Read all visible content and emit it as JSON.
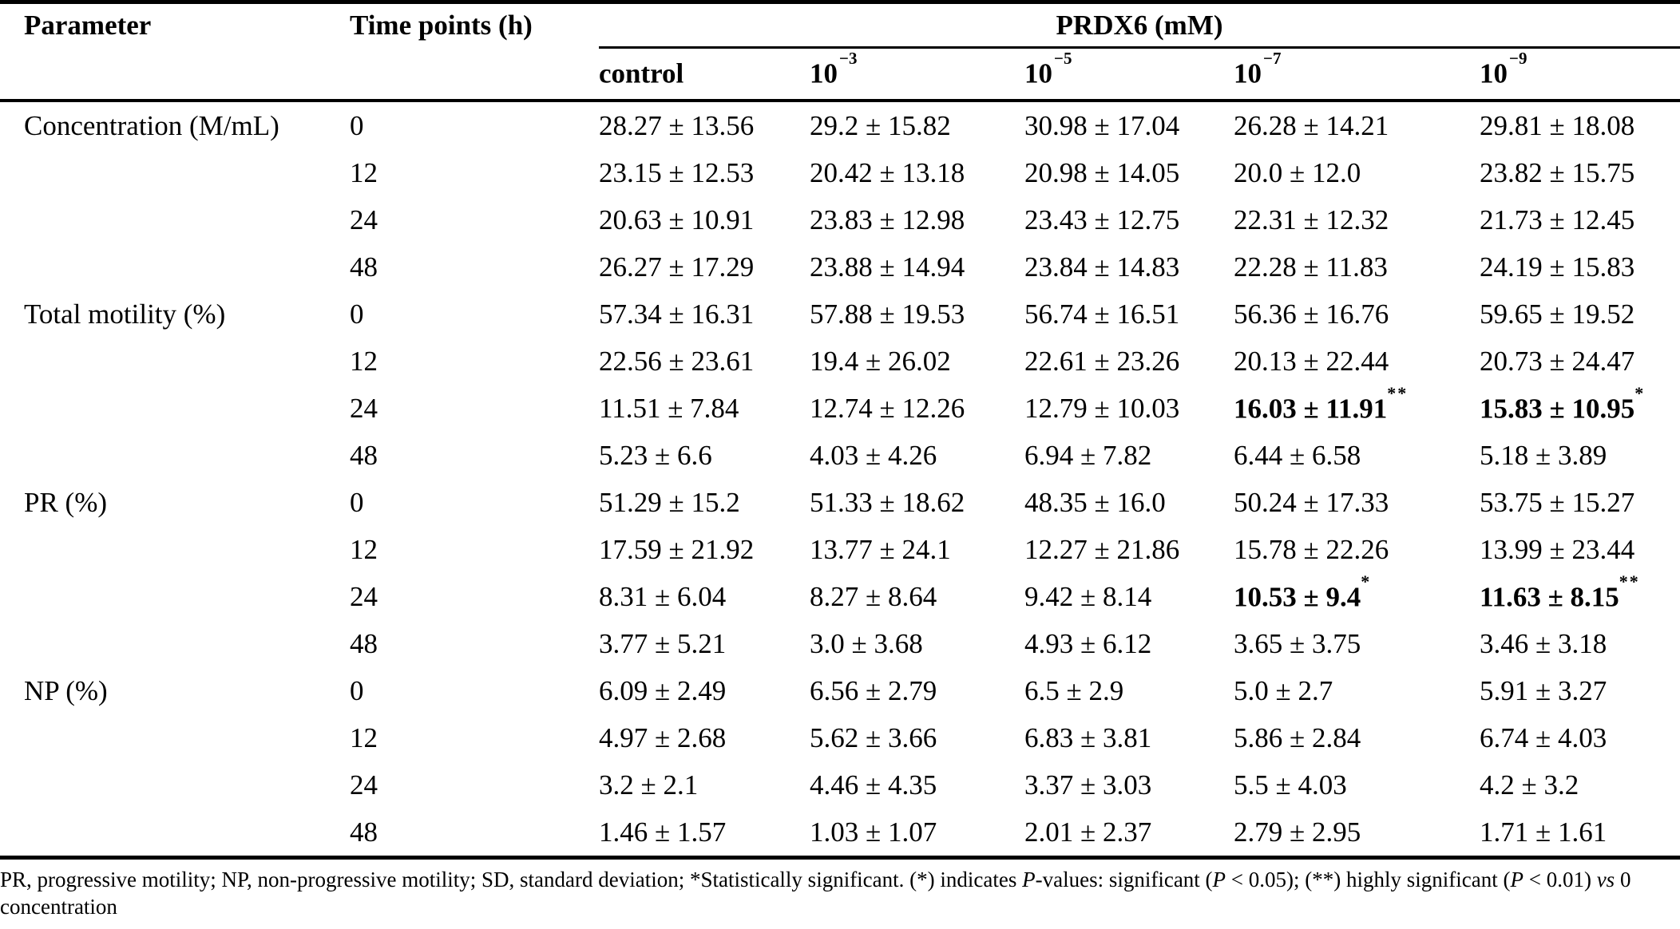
{
  "header": {
    "parameter": "Parameter",
    "time_points": "Time points (h)",
    "spanner": "PRDX6 (mM)",
    "subcols": [
      {
        "base": "control",
        "exp": ""
      },
      {
        "base": "10",
        "exp": "−3"
      },
      {
        "base": "10",
        "exp": "−5"
      },
      {
        "base": "10",
        "exp": "−7"
      },
      {
        "base": "10",
        "exp": "−9"
      }
    ]
  },
  "groups": [
    {
      "parameter": "Concentration (M/mL)",
      "rows": [
        {
          "time": "0",
          "cells": [
            "28.27 ± 13.56",
            "29.2 ± 15.82",
            "30.98 ± 17.04",
            "26.28 ± 14.21",
            "29.81 ± 18.08"
          ]
        },
        {
          "time": "12",
          "cells": [
            "23.15 ± 12.53",
            "20.42 ± 13.18",
            "20.98 ± 14.05",
            "20.0 ± 12.0",
            "23.82 ± 15.75"
          ]
        },
        {
          "time": "24",
          "cells": [
            "20.63 ± 10.91",
            "23.83 ± 12.98",
            "23.43 ± 12.75",
            "22.31 ± 12.32",
            "21.73 ± 12.45"
          ]
        },
        {
          "time": "48",
          "cells": [
            "26.27 ± 17.29",
            "23.88 ± 14.94",
            "23.84 ± 14.83",
            "22.28 ± 11.83",
            "24.19 ± 15.83"
          ]
        }
      ]
    },
    {
      "parameter": "Total motility (%)",
      "rows": [
        {
          "time": "0",
          "cells": [
            "57.34 ± 16.31",
            "57.88 ± 19.53",
            "56.74 ± 16.51",
            "56.36 ± 16.76",
            "59.65 ± 19.52"
          ]
        },
        {
          "time": "12",
          "cells": [
            "22.56 ± 23.61",
            "19.4 ± 26.02",
            "22.61 ± 23.26",
            "20.13 ± 22.44",
            "20.73 ± 24.47"
          ]
        },
        {
          "time": "24",
          "cells": [
            "11.51 ± 7.84",
            "12.74 ± 12.26",
            "12.79 ± 10.03",
            {
              "value": "16.03 ± 11.91",
              "mark": "**",
              "bold": true
            },
            {
              "value": "15.83 ± 10.95",
              "mark": "*",
              "bold": true
            }
          ]
        },
        {
          "time": "48",
          "cells": [
            "5.23 ± 6.6",
            "4.03 ± 4.26",
            "6.94 ± 7.82",
            "6.44 ± 6.58",
            "5.18 ± 3.89"
          ]
        }
      ]
    },
    {
      "parameter": "PR (%)",
      "rows": [
        {
          "time": "0",
          "cells": [
            "51.29 ± 15.2",
            "51.33 ± 18.62",
            "48.35 ± 16.0",
            "50.24 ± 17.33",
            "53.75 ± 15.27"
          ]
        },
        {
          "time": "12",
          "cells": [
            "17.59 ± 21.92",
            "13.77 ± 24.1",
            "12.27 ± 21.86",
            "15.78 ± 22.26",
            "13.99 ± 23.44"
          ]
        },
        {
          "time": "24",
          "cells": [
            "8.31 ± 6.04",
            "8.27 ± 8.64",
            "9.42 ± 8.14",
            {
              "value": "10.53 ± 9.4",
              "mark": "*",
              "bold": true
            },
            {
              "value": "11.63 ± 8.15",
              "mark": "**",
              "bold": true
            }
          ]
        },
        {
          "time": "48",
          "cells": [
            "3.77 ± 5.21",
            "3.0 ± 3.68",
            "4.93 ± 6.12",
            "3.65 ± 3.75",
            "3.46 ± 3.18"
          ]
        }
      ]
    },
    {
      "parameter": "NP (%)",
      "rows": [
        {
          "time": "0",
          "cells": [
            "6.09 ± 2.49",
            "6.56 ± 2.79",
            "6.5 ± 2.9",
            "5.0 ± 2.7",
            "5.91 ± 3.27"
          ]
        },
        {
          "time": "12",
          "cells": [
            "4.97 ± 2.68",
            "5.62 ± 3.66",
            "6.83 ± 3.81",
            "5.86 ± 2.84",
            "6.74 ± 4.03"
          ]
        },
        {
          "time": "24",
          "cells": [
            "3.2 ± 2.1",
            "4.46 ± 4.35",
            "3.37 ± 3.03",
            "5.5 ± 4.03",
            "4.2 ± 3.2"
          ]
        },
        {
          "time": "48",
          "cells": [
            "1.46 ± 1.57",
            "1.03 ± 1.07",
            "2.01 ± 2.37",
            "2.79 ± 2.95",
            "1.71 ± 1.61"
          ]
        }
      ]
    }
  ],
  "footnote": {
    "segments": [
      {
        "text": "PR, progressive motility; NP, non-progressive motility; SD, standard deviation; *Statistically significant. (*) indicates ",
        "italic": false
      },
      {
        "text": "P",
        "italic": true
      },
      {
        "text": "-values: significant (",
        "italic": false
      },
      {
        "text": "P",
        "italic": true
      },
      {
        "text": " < 0.05); (**) highly significant (",
        "italic": false
      },
      {
        "text": "P",
        "italic": true
      },
      {
        "text": " < 0.01) ",
        "italic": false
      },
      {
        "text": "vs",
        "italic": true
      },
      {
        "text": " 0 concentration",
        "italic": false
      }
    ]
  }
}
